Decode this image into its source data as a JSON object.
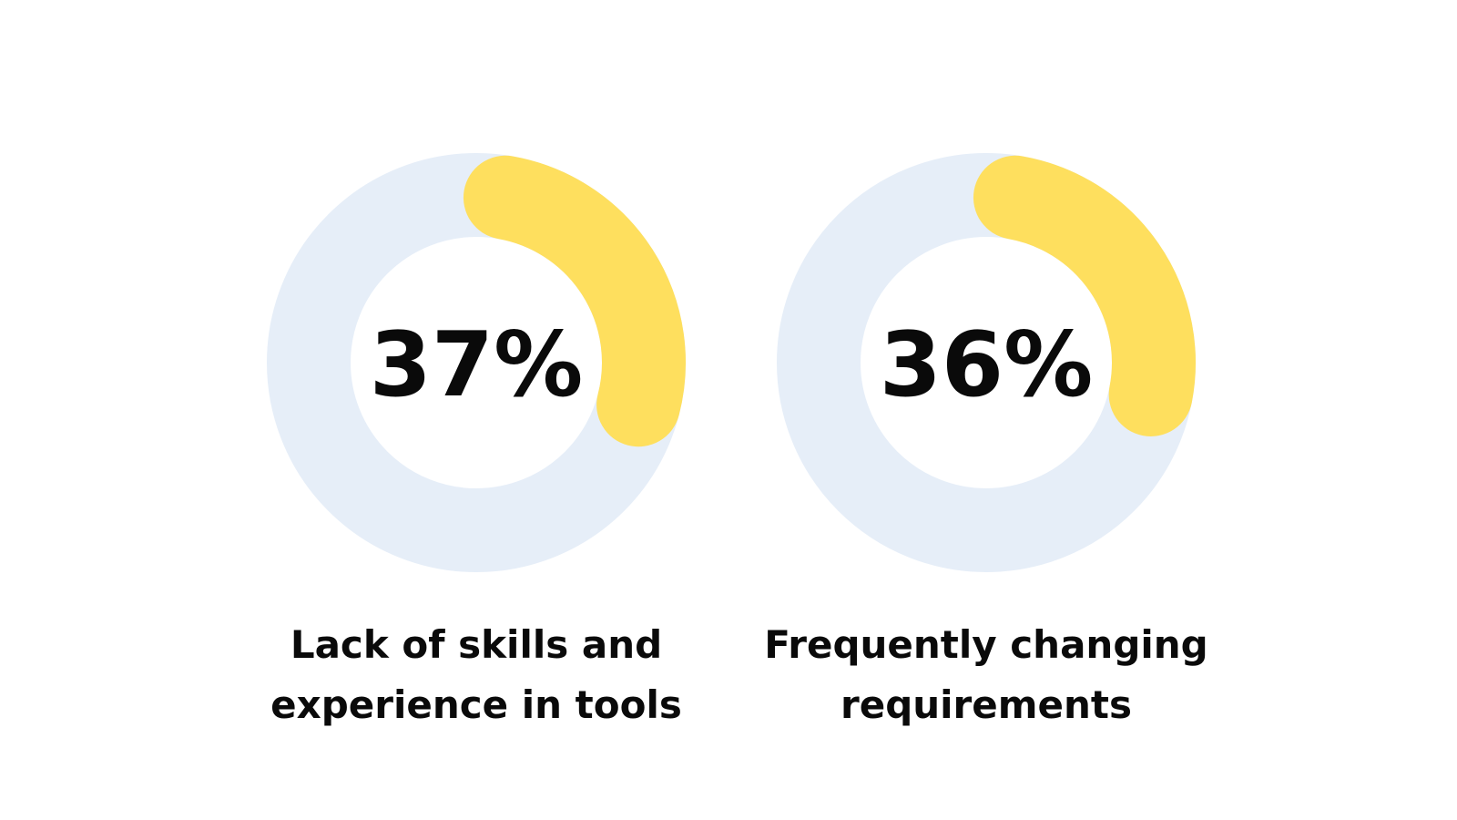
{
  "chart_data": [
    {
      "type": "donut",
      "value": 37,
      "label": "37%",
      "caption_lines": [
        "Lack of skills and",
        "experience in tools"
      ],
      "ylim": [
        0,
        100
      ]
    },
    {
      "type": "donut",
      "value": 36,
      "label": "36%",
      "caption_lines": [
        "Frequently changing",
        "requirements"
      ],
      "ylim": [
        0,
        100
      ]
    }
  ],
  "colors": {
    "track": "#e6eef8",
    "highlight": "#fedf5e",
    "text": "#0a0a0a",
    "background": "#ffffff"
  }
}
